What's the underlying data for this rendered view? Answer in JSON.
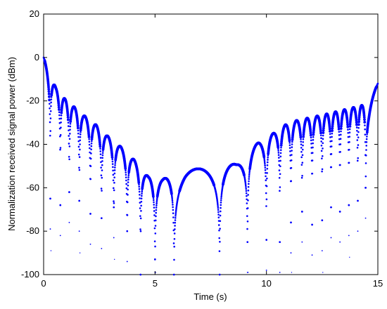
{
  "chart_data": {
    "type": "scatter",
    "title": "",
    "xlabel": "Time (s)",
    "ylabel": "Normalization received signal power (dBm)",
    "xlim": [
      0,
      15
    ],
    "ylim": [
      -100,
      20
    ],
    "xticks": [
      0,
      5,
      10,
      15
    ],
    "yticks": [
      -100,
      -80,
      -60,
      -40,
      -20,
      0,
      20
    ],
    "grid": false,
    "legend": "none",
    "marker_color": "#0000ff",
    "series": [
      {
        "envelope_peaks": [
          {
            "x": 0.0,
            "y": 0
          },
          {
            "x": 0.55,
            "y": -14
          },
          {
            "x": 0.95,
            "y": -19
          },
          {
            "x": 1.4,
            "y": -23
          },
          {
            "x": 1.85,
            "y": -27
          },
          {
            "x": 2.35,
            "y": -31
          },
          {
            "x": 2.85,
            "y": -36
          },
          {
            "x": 3.45,
            "y": -41
          },
          {
            "x": 4.05,
            "y": -47
          },
          {
            "x": 4.7,
            "y": -55
          },
          {
            "x": 5.35,
            "y": -56
          },
          {
            "x": 6.35,
            "y": -52
          },
          {
            "x": 8.65,
            "y": -49
          },
          {
            "x": 9.65,
            "y": -39
          },
          {
            "x": 10.3,
            "y": -35
          },
          {
            "x": 10.85,
            "y": -31
          },
          {
            "x": 11.35,
            "y": -29
          },
          {
            "x": 11.8,
            "y": -28
          },
          {
            "x": 12.25,
            "y": -27
          },
          {
            "x": 12.7,
            "y": -26
          },
          {
            "x": 13.1,
            "y": -25
          },
          {
            "x": 13.5,
            "y": -24
          },
          {
            "x": 13.9,
            "y": -23
          },
          {
            "x": 14.3,
            "y": -22
          },
          {
            "x": 14.6,
            "y": -20
          },
          {
            "x": 15.0,
            "y": -12
          }
        ],
        "nulls": [
          {
            "x": 0.3,
            "y": -65
          },
          {
            "x": 0.75,
            "y": -68
          },
          {
            "x": 1.15,
            "y": -62
          },
          {
            "x": 1.6,
            "y": -66
          },
          {
            "x": 2.1,
            "y": -72
          },
          {
            "x": 2.6,
            "y": -74
          },
          {
            "x": 3.15,
            "y": -69
          },
          {
            "x": 3.75,
            "y": -80
          },
          {
            "x": 4.35,
            "y": -100
          },
          {
            "x": 5.0,
            "y": -93
          },
          {
            "x": 5.85,
            "y": -100
          },
          {
            "x": 7.9,
            "y": -100
          },
          {
            "x": 9.15,
            "y": -85
          },
          {
            "x": 10.0,
            "y": -84
          },
          {
            "x": 10.6,
            "y": -85
          },
          {
            "x": 11.1,
            "y": -76
          },
          {
            "x": 11.6,
            "y": -71
          },
          {
            "x": 12.05,
            "y": -77
          },
          {
            "x": 12.5,
            "y": -75
          },
          {
            "x": 12.9,
            "y": -69
          },
          {
            "x": 13.3,
            "y": -71
          },
          {
            "x": 13.7,
            "y": -68
          },
          {
            "x": 14.1,
            "y": -66
          },
          {
            "x": 14.45,
            "y": -60
          }
        ]
      }
    ]
  }
}
